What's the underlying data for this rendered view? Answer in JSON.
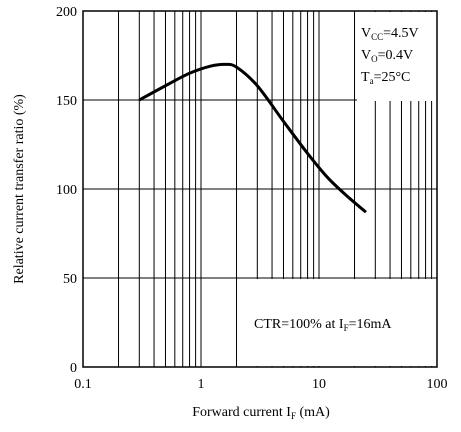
{
  "chart_data": {
    "type": "line",
    "x_scale": "log",
    "xlim": [
      0.1,
      100
    ],
    "ylim": [
      0,
      200
    ],
    "x_ticks": [
      0.1,
      1,
      10,
      100
    ],
    "x_tick_labels": [
      "0.1",
      "1",
      "10",
      "100"
    ],
    "y_ticks": [
      0,
      50,
      100,
      150,
      200
    ],
    "y_tick_labels": [
      "0",
      "50",
      "100",
      "150",
      "200"
    ],
    "ylabel": "Relative current transfer ratio (%)",
    "xlabel": {
      "prefix": "Forward current  I",
      "sub": "F",
      "suffix": " (mA)"
    },
    "grid": true,
    "series": [
      {
        "x": [
          0.3,
          0.5,
          0.8,
          1.2,
          1.6,
          2.0,
          3.0,
          5.0,
          8.0,
          12.0,
          18.0,
          25.0
        ],
        "y": [
          150,
          158,
          165,
          169,
          170,
          168.5,
          158,
          138,
          120,
          106,
          95,
          87
        ]
      }
    ],
    "conditions": [
      {
        "main": "V",
        "sub": "CC",
        "rest": "=4.5V"
      },
      {
        "main": "V",
        "sub": "O",
        "rest": "=0.4V"
      },
      {
        "main": "T",
        "sub": "a",
        "rest": "=25°C"
      }
    ],
    "note": {
      "prefix": "CTR=100% at I",
      "sub": "F",
      "suffix": "=16mA"
    }
  }
}
